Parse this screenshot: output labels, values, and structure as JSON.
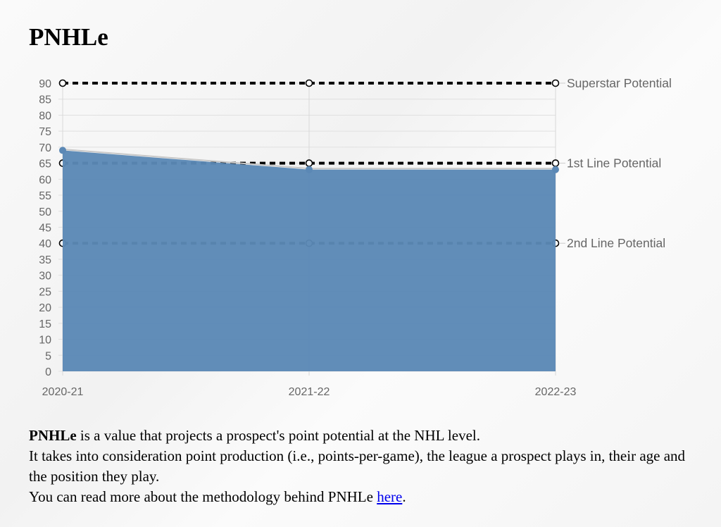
{
  "title": "PNHLe",
  "chart_data": {
    "type": "area",
    "categories": [
      "2020-21",
      "2021-22",
      "2022-23"
    ],
    "series": [
      {
        "name": "PNHLe",
        "values": [
          69,
          63,
          63
        ],
        "color": "#5b88b5"
      }
    ],
    "reference_lines": [
      {
        "label": "Superstar Potential",
        "value": 90
      },
      {
        "label": "1st Line Potential",
        "value": 65
      },
      {
        "label": "2nd Line Potential",
        "value": 40
      }
    ],
    "ylim": [
      0,
      90
    ],
    "ytick_step": 5,
    "grid": true,
    "xlabel": "",
    "ylabel": ""
  },
  "description": {
    "bold": "PNHLe",
    "line1": " is a value that projects a prospect's point potential at the NHL level.",
    "line2": "It takes into consideration point production (i.e., points-per-game), the league a prospect plays in, their age and the position they play.",
    "line3_prefix": "You can read more about the methodology behind PNHLe ",
    "link": "here",
    "line3_suffix": "."
  }
}
